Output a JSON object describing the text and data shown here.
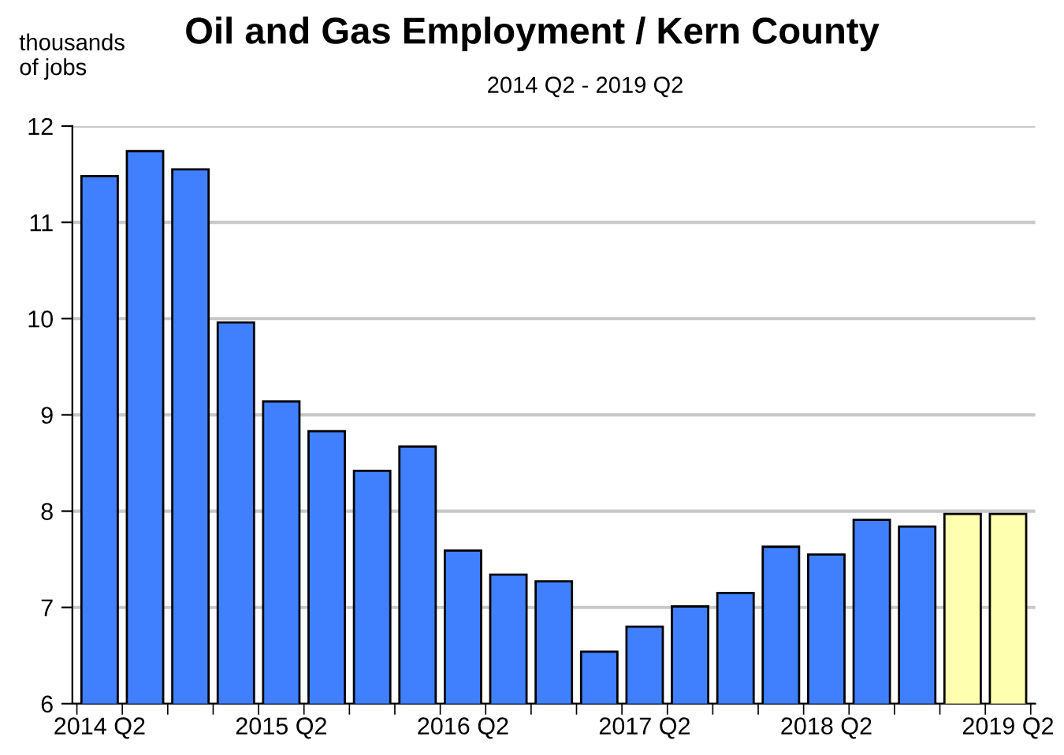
{
  "chart_data": {
    "type": "bar",
    "title": "Oil and Gas Employment / Kern County",
    "subtitle": "2014 Q2 - 2019 Q2",
    "ylabel": "thousands\nof jobs",
    "categories": [
      "2014 Q2",
      null,
      null,
      null,
      "2015 Q2",
      null,
      null,
      null,
      "2016 Q2",
      null,
      null,
      null,
      "2017 Q2",
      null,
      null,
      null,
      "2018 Q2",
      null,
      null,
      null,
      "2019 Q2"
    ],
    "values": [
      11.48,
      11.74,
      11.55,
      9.96,
      9.14,
      8.83,
      8.42,
      8.67,
      7.59,
      7.34,
      7.27,
      6.54,
      6.8,
      7.01,
      7.15,
      7.63,
      7.55,
      7.91,
      7.84,
      7.97,
      7.97
    ],
    "colors": [
      "#4080ff",
      "#4080ff",
      "#4080ff",
      "#4080ff",
      "#4080ff",
      "#4080ff",
      "#4080ff",
      "#4080ff",
      "#4080ff",
      "#4080ff",
      "#4080ff",
      "#4080ff",
      "#4080ff",
      "#4080ff",
      "#4080ff",
      "#4080ff",
      "#4080ff",
      "#4080ff",
      "#4080ff",
      "#ffffb0",
      "#ffffb0"
    ],
    "ylim": [
      6,
      12
    ],
    "yticks": [
      6,
      7,
      8,
      9,
      10,
      11,
      12
    ],
    "grid": "y"
  }
}
